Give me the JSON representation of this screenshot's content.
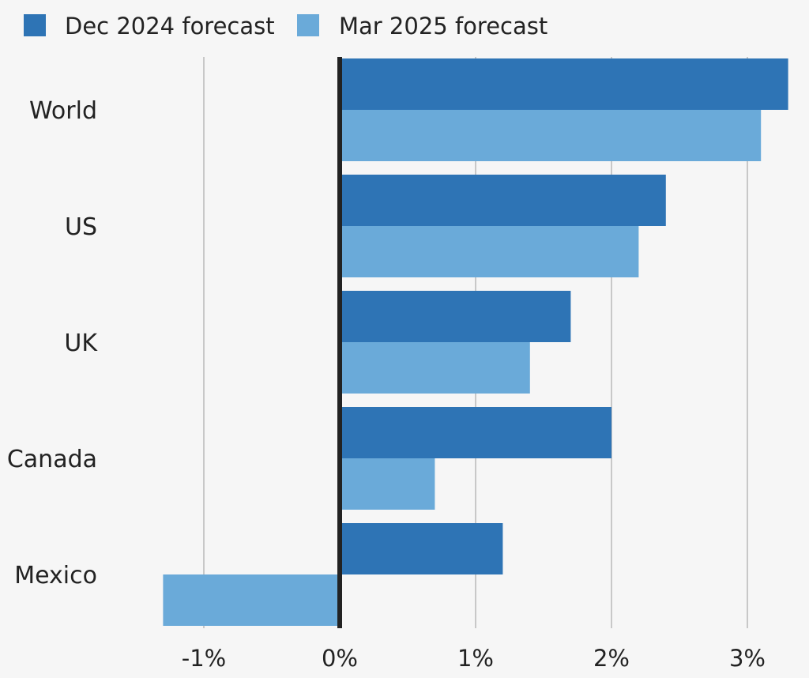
{
  "legend": [
    {
      "label": "Dec 2024 forecast",
      "color": "#2e74b5"
    },
    {
      "label": "Mar 2025 forecast",
      "color": "#6aaad9"
    }
  ],
  "colors": {
    "background": "#f6f6f6",
    "gridline": "#b9b9b9",
    "zero_line": "#222222",
    "text": "#222222"
  },
  "chart_data": {
    "type": "bar",
    "orientation": "horizontal",
    "categories": [
      "World",
      "US",
      "UK",
      "Canada",
      "Mexico"
    ],
    "series": [
      {
        "name": "Dec 2024 forecast",
        "values": [
          3.3,
          2.4,
          1.7,
          2.0,
          1.2
        ]
      },
      {
        "name": "Mar 2025 forecast",
        "values": [
          3.1,
          2.2,
          1.4,
          0.7,
          -1.3
        ]
      }
    ],
    "xlim": [
      -1.5,
      3.3
    ],
    "xticks": [
      -1,
      0,
      1,
      2,
      3
    ],
    "xtick_labels": [
      "-1%",
      "0%",
      "1%",
      "2%",
      "3%"
    ],
    "grid": true,
    "legend_position": "top-left"
  }
}
